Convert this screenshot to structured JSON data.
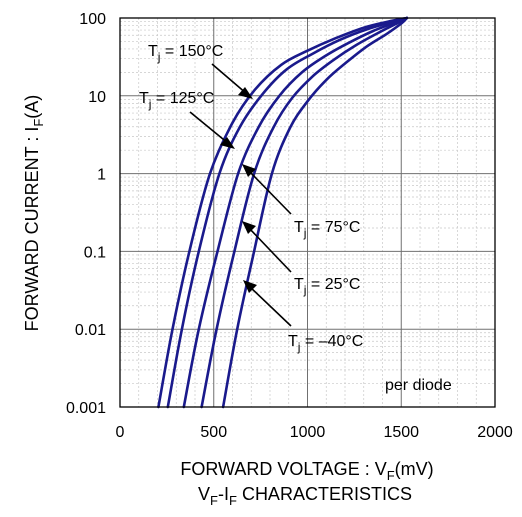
{
  "chart_data": {
    "type": "line",
    "title": "",
    "caption": {
      "main": "V",
      "sub1": "F",
      "middle": "-I",
      "sub2": "F",
      "rest": " CHARACTERISTICS"
    },
    "xlabel": {
      "main": "FORWARD VOLTAGE : V",
      "sub": "F",
      "unit": "(mV)"
    },
    "ylabel": {
      "main": "FORWARD CURRENT : I",
      "sub": "F",
      "unit": "(A)"
    },
    "x_scale": "linear",
    "y_scale": "log",
    "xlim": [
      0,
      2000
    ],
    "ylim": [
      0.001,
      100
    ],
    "x_ticks": [
      0,
      500,
      1000,
      1500,
      2000
    ],
    "x_tick_labels": [
      "0",
      "500",
      "1000",
      "1500",
      "2000"
    ],
    "y_ticks": [
      0.001,
      0.01,
      0.1,
      1,
      10,
      100
    ],
    "y_tick_labels": [
      "0.001",
      "0.01",
      "0.1",
      "1",
      "10",
      "100"
    ],
    "grid": true,
    "minor_grid": true,
    "line_color": "#1a1a8c",
    "annotation_note": "per diode",
    "series": [
      {
        "name": "Tj = 150°C",
        "label_main": "T",
        "label_sub": "j",
        "label_rest": " = 150°C",
        "x": [
          205,
          280,
          370,
          480,
          600,
          720,
          860,
          1000,
          1150,
          1300,
          1450,
          1530
        ],
        "y": [
          0.001,
          0.01,
          0.1,
          1,
          4.5,
          12,
          25,
          38,
          55,
          75,
          92,
          100
        ]
      },
      {
        "name": "Tj = 125°C",
        "label_main": "T",
        "label_sub": "j",
        "label_rest": " = 125°C",
        "x": [
          255,
          330,
          420,
          530,
          640,
          760,
          890,
          1030,
          1170,
          1320,
          1460,
          1530
        ],
        "y": [
          0.001,
          0.01,
          0.1,
          1,
          4,
          10.5,
          22,
          35,
          52,
          72,
          90,
          100
        ]
      },
      {
        "name": "Tj = 75°C",
        "label_main": "T",
        "label_sub": "j",
        "label_rest": " = 75°C",
        "x": [
          340,
          420,
          520,
          630,
          740,
          850,
          970,
          1090,
          1220,
          1350,
          1470,
          1530
        ],
        "y": [
          0.001,
          0.01,
          0.1,
          1,
          4,
          10,
          20,
          32,
          48,
          68,
          88,
          100
        ]
      },
      {
        "name": "Tj = 25°C",
        "label_main": "T",
        "label_sub": "j",
        "label_rest": " = 25°C",
        "x": [
          435,
          515,
          610,
          715,
          820,
          920,
          1030,
          1140,
          1260,
          1380,
          1480,
          1530
        ],
        "y": [
          0.001,
          0.01,
          0.1,
          1,
          4,
          9.5,
          18,
          29,
          45,
          65,
          86,
          100
        ]
      },
      {
        "name": "Tj = –40°C",
        "label_main": "T",
        "label_sub": "j",
        "label_rest": " = –40°C",
        "x": [
          550,
          625,
          715,
          810,
          905,
          1000,
          1100,
          1200,
          1310,
          1420,
          1500,
          1530
        ],
        "y": [
          0.001,
          0.01,
          0.1,
          1,
          3.8,
          8.5,
          16,
          26,
          42,
          62,
          85,
          100
        ]
      }
    ]
  }
}
